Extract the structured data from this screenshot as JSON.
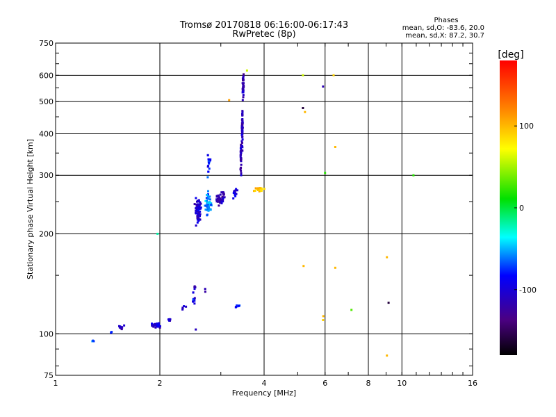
{
  "chart_data": {
    "type": "scatter",
    "title": "Tromsø 20170818 06:16:00-06:17:43",
    "subtitle": "RwPretec (8p)",
    "xlabel": "Frequency [MHz]",
    "ylabel": "Stationary phase Virtual Height [km]",
    "x_scale": "log2",
    "y_scale": "log",
    "xlim": [
      1,
      16
    ],
    "ylim": [
      75,
      750
    ],
    "x_ticks": [
      {
        "value": 1,
        "label": "1"
      },
      {
        "value": 2,
        "label": "2"
      },
      {
        "value": 4,
        "label": "4"
      },
      {
        "value": 6,
        "label": "6"
      },
      {
        "value": 8,
        "label": "8"
      },
      {
        "value": 10,
        "label": "10"
      },
      {
        "value": 16,
        "label": "16"
      }
    ],
    "y_ticks": [
      {
        "value": 75,
        "label": "75"
      },
      {
        "value": 100,
        "label": "100"
      },
      {
        "value": 200,
        "label": "200"
      },
      {
        "value": 300,
        "label": "300"
      },
      {
        "value": 400,
        "label": "400"
      },
      {
        "value": 500,
        "label": "500"
      },
      {
        "value": 600,
        "label": "600"
      },
      {
        "value": 750,
        "label": "750"
      }
    ],
    "grid": true,
    "stats": {
      "heading": "Phases",
      "line1": "mean, sd,O: -83.6, 20.0",
      "line2": "mean, sd,X:  87.2, 30.7"
    },
    "colorbar": {
      "label": "[deg]",
      "range": [
        -180,
        180
      ],
      "ticks": [
        {
          "value": 100,
          "label": "100"
        },
        {
          "value": 0,
          "label": "0"
        },
        {
          "value": -100,
          "label": "-100"
        }
      ]
    },
    "clusters": [
      {
        "x": 1.28,
        "y": 95,
        "sx": 0.01,
        "sy": 0.6,
        "n": 5,
        "phase": -60
      },
      {
        "x": 1.45,
        "y": 101,
        "sx": 0.01,
        "sy": 0.5,
        "n": 3,
        "phase": -80
      },
      {
        "x": 1.54,
        "y": 105,
        "sx": 0.03,
        "sy": 1.5,
        "n": 10,
        "phase": -110
      },
      {
        "x": 1.95,
        "y": 106,
        "sx": 0.07,
        "sy": 1.3,
        "n": 30,
        "phase": -100
      },
      {
        "x": 2.12,
        "y": 110,
        "sx": 0.03,
        "sy": 1.2,
        "n": 8,
        "phase": -105
      },
      {
        "x": 2.35,
        "y": 120,
        "sx": 0.04,
        "sy": 2.0,
        "n": 5,
        "phase": -100
      },
      {
        "x": 2.5,
        "y": 127,
        "sx": 0.03,
        "sy": 6.0,
        "n": 10,
        "phase": -90
      },
      {
        "x": 2.52,
        "y": 138,
        "sx": 0.02,
        "sy": 2.0,
        "n": 5,
        "phase": -110
      },
      {
        "x": 2.7,
        "y": 135,
        "sx": 0.02,
        "sy": 2.0,
        "n": 2,
        "phase": -120
      },
      {
        "x": 3.35,
        "y": 121,
        "sx": 0.04,
        "sy": 1.0,
        "n": 8,
        "phase": -75
      },
      {
        "x": 2.58,
        "y": 235,
        "sx": 0.05,
        "sy": 18,
        "n": 70,
        "phase": -105
      },
      {
        "x": 2.76,
        "y": 245,
        "sx": 0.05,
        "sy": 20,
        "n": 50,
        "phase": -60
      },
      {
        "x": 2.77,
        "y": 320,
        "sx": 0.03,
        "sy": 28,
        "n": 15,
        "phase": -80
      },
      {
        "x": 3.0,
        "y": 255,
        "sx": 0.08,
        "sy": 12,
        "n": 45,
        "phase": -120
      },
      {
        "x": 3.3,
        "y": 265,
        "sx": 0.06,
        "sy": 15,
        "n": 12,
        "phase": -100
      },
      {
        "x": 3.43,
        "y": 330,
        "sx": 0.01,
        "sy": 40,
        "n": 30,
        "phase": -115
      },
      {
        "x": 3.46,
        "y": 420,
        "sx": 0.012,
        "sy": 55,
        "n": 50,
        "phase": -110
      },
      {
        "x": 3.48,
        "y": 560,
        "sx": 0.012,
        "sy": 50,
        "n": 35,
        "phase": -115
      },
      {
        "x": 3.85,
        "y": 272,
        "sx": 0.12,
        "sy": 4,
        "n": 20,
        "phase": 95
      }
    ],
    "points": [
      {
        "x": 1.97,
        "y": 200,
        "phase": -20
      },
      {
        "x": 2.54,
        "y": 103,
        "phase": -110
      },
      {
        "x": 3.17,
        "y": 505,
        "phase": 110
      },
      {
        "x": 3.57,
        "y": 620,
        "phase": 60
      },
      {
        "x": 5.18,
        "y": 600,
        "phase": 60
      },
      {
        "x": 5.18,
        "y": 478,
        "phase": -160
      },
      {
        "x": 5.25,
        "y": 465,
        "phase": 100
      },
      {
        "x": 5.2,
        "y": 160,
        "phase": 100
      },
      {
        "x": 5.92,
        "y": 555,
        "phase": -115
      },
      {
        "x": 6.0,
        "y": 305,
        "phase": 20
      },
      {
        "x": 5.93,
        "y": 113,
        "phase": 100
      },
      {
        "x": 5.92,
        "y": 110,
        "phase": 90
      },
      {
        "x": 6.35,
        "y": 600,
        "phase": 90
      },
      {
        "x": 6.42,
        "y": 365,
        "phase": 100
      },
      {
        "x": 6.42,
        "y": 158,
        "phase": 100
      },
      {
        "x": 7.15,
        "y": 118,
        "phase": 30
      },
      {
        "x": 9.05,
        "y": 170,
        "phase": 100
      },
      {
        "x": 9.15,
        "y": 124,
        "phase": -160
      },
      {
        "x": 9.05,
        "y": 86,
        "phase": 100
      },
      {
        "x": 10.8,
        "y": 300,
        "phase": 20
      }
    ]
  }
}
